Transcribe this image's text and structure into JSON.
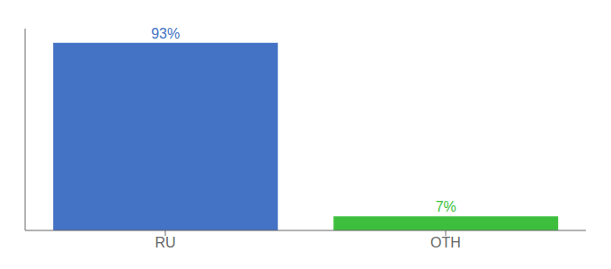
{
  "chart_data": {
    "type": "bar",
    "categories": [
      "RU",
      "OTH"
    ],
    "values": [
      93,
      7
    ],
    "value_labels": [
      "93%",
      "7%"
    ],
    "colors": [
      "#4472c4",
      "#3dbf3d"
    ],
    "ylim": [
      0,
      100
    ],
    "data_labels": true,
    "tick_labels": "x",
    "grid": false
  }
}
